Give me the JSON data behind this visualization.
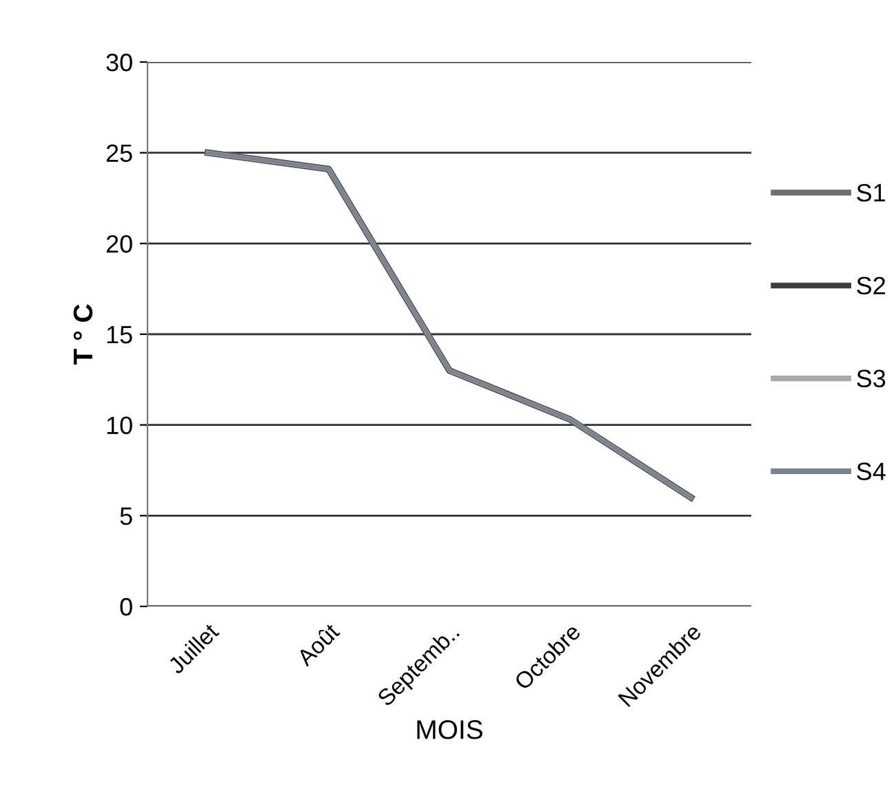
{
  "chart_data": {
    "type": "line",
    "xlabel": "MOIS",
    "ylabel": "T ° C",
    "categories": [
      "Juillet",
      "Août",
      "Septemb..",
      "Octobre",
      "Novembre"
    ],
    "series": [
      {
        "name": "S1",
        "color": "#6e6e6e",
        "values": [
          25,
          24.1,
          13,
          10.3,
          6
        ]
      },
      {
        "name": "S2",
        "color": "#3c3c3c",
        "values": [
          25,
          24.1,
          13,
          10.3,
          6
        ]
      },
      {
        "name": "S3",
        "color": "#a8a8a8",
        "values": [
          25,
          24.1,
          13,
          10.3,
          6
        ]
      },
      {
        "name": "S4",
        "color": "#7a8490",
        "values": [
          25,
          24.1,
          13,
          10.3,
          6
        ]
      }
    ],
    "ylim": [
      0,
      30
    ],
    "yticks": [
      0,
      5,
      10,
      15,
      20,
      25,
      30
    ],
    "grid": "y",
    "legend": "right",
    "marker": "none",
    "line_style": "solid"
  }
}
